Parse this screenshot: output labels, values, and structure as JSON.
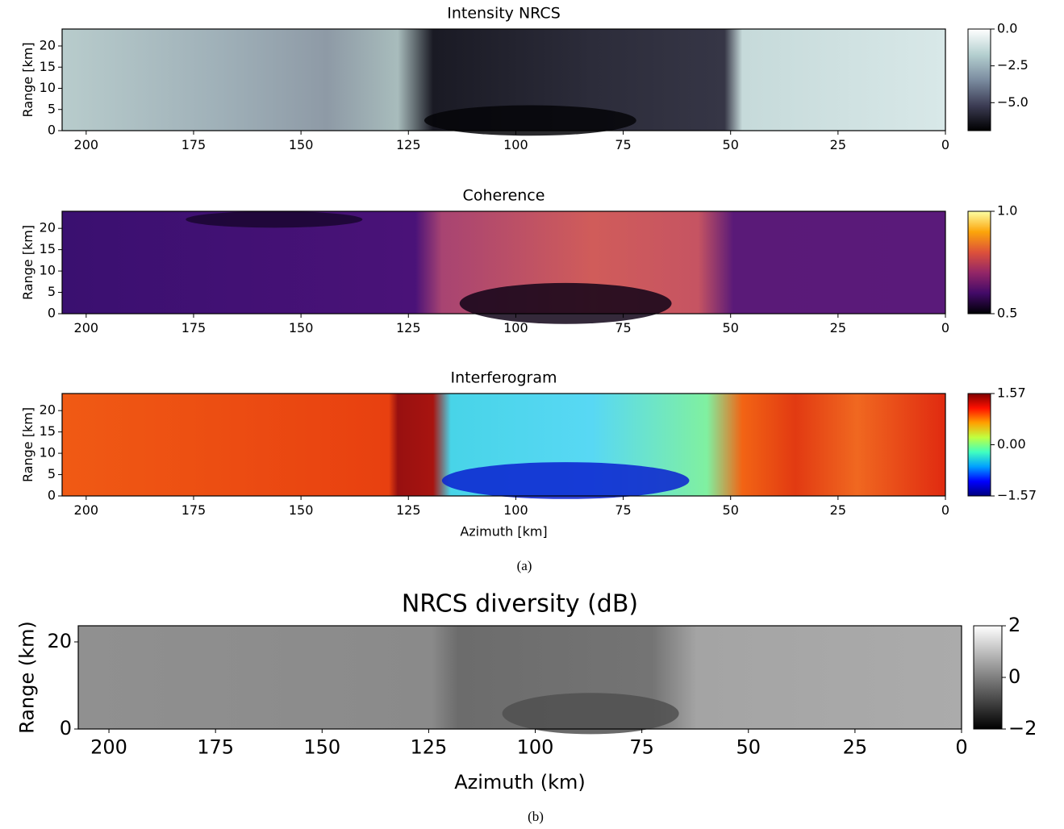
{
  "chart_data": [
    {
      "type": "heatmap",
      "title": "Intensity NRCS",
      "ylabel": "Range [km]",
      "xlim": [
        205.6,
        0
      ],
      "xticks": [
        200,
        175,
        150,
        125,
        100,
        75,
        50,
        25,
        0
      ],
      "ylim": [
        0,
        24
      ],
      "yticks": [
        0,
        5,
        10,
        15,
        20
      ],
      "colormap": "bone",
      "clim": [
        -6.9,
        0
      ],
      "cticks": [
        {
          "value": 0,
          "label": "0.0"
        },
        {
          "value": -2.5,
          "label": "−2.5"
        },
        {
          "value": -5.0,
          "label": "−5.0"
        }
      ]
    },
    {
      "type": "heatmap",
      "title": "Coherence",
      "ylabel": "Range [km]",
      "xlim": [
        205.6,
        0
      ],
      "xticks": [
        200,
        175,
        150,
        125,
        100,
        75,
        50,
        25,
        0
      ],
      "ylim": [
        0,
        24
      ],
      "yticks": [
        0,
        5,
        10,
        15,
        20
      ],
      "colormap": "inferno",
      "clim": [
        0.5,
        1.0
      ],
      "cticks": [
        {
          "value": 1.0,
          "label": "1.0"
        },
        0.5
      ]
    },
    {
      "type": "heatmap",
      "title": "Interferogram",
      "ylabel": "Range [km]",
      "xlabel": "Azimuth [km]",
      "xlim": [
        205.6,
        0
      ],
      "xticks": [
        200,
        175,
        150,
        125,
        100,
        75,
        50,
        25,
        0
      ],
      "ylim": [
        0,
        24
      ],
      "yticks": [
        0,
        5,
        10,
        15,
        20
      ],
      "colormap": "jet",
      "clim": [
        -1.57,
        1.57
      ],
      "cticks": [
        1.57,
        {
          "value": 0,
          "label": "0.00"
        },
        {
          "value": -1.57,
          "label": "−1.57"
        }
      ]
    },
    {
      "type": "heatmap",
      "title": "NRCS diversity (dB)",
      "ylabel": "Range (km)",
      "xlabel": "Azimuth (km)",
      "xlim": [
        207.2,
        0
      ],
      "xticks": [
        200,
        175,
        150,
        125,
        100,
        75,
        50,
        25,
        0
      ],
      "ylim": [
        0,
        23.7
      ],
      "yticks": [
        0,
        20
      ],
      "colormap": "gray",
      "clim": [
        -2,
        2
      ],
      "cticks": [
        2,
        0,
        {
          "value": -2,
          "label": "−2"
        }
      ]
    }
  ],
  "captions": [
    "(a)",
    "(b)"
  ]
}
